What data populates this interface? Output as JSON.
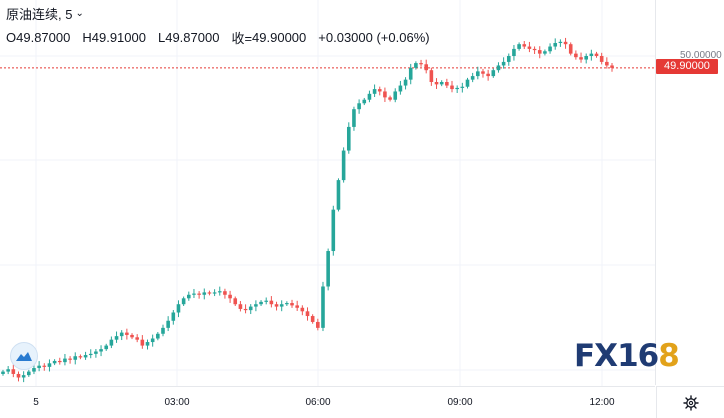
{
  "header": {
    "symbol_title": "原油连续, 5",
    "ohlc": {
      "o_label": "O",
      "o_value": "49.87000",
      "h_label": "H",
      "h_value": "49.91000",
      "l_label": "L",
      "l_value": "49.87000",
      "c_label": "收=",
      "c_value": "49.90000",
      "change": "+0.03000 (+0.06%)"
    }
  },
  "price_axis": {
    "tick_label": "50.00000",
    "last_price_tag": "49.90000"
  },
  "time_axis": {
    "labels": [
      "5",
      "03:00",
      "06:00",
      "09:00",
      "12:00"
    ]
  },
  "watermark": {
    "text_main": "FX16",
    "text_accent": "8"
  },
  "colors": {
    "up": "#26a69a",
    "down": "#ef5350",
    "price_line": "#e53935",
    "grid": "#f0f3fa"
  },
  "icons": {
    "settings": "gear-icon",
    "chart_logo": "cloud-icon",
    "dropdown": "chevron-down-icon"
  },
  "chart_data": {
    "type": "candlestick",
    "interval": "5",
    "y_tick": 50.0,
    "last_price": 49.9,
    "x_ticks": [
      "5",
      "03:00",
      "06:00",
      "09:00",
      "12:00"
    ],
    "close_path": [
      47.33,
      47.35,
      47.31,
      47.28,
      47.3,
      47.33,
      47.36,
      47.38,
      47.37,
      47.4,
      47.42,
      47.41,
      47.44,
      47.43,
      47.46,
      47.45,
      47.47,
      47.48,
      47.5,
      47.52,
      47.55,
      47.6,
      47.63,
      47.66,
      47.64,
      47.62,
      47.6,
      47.55,
      47.58,
      47.61,
      47.65,
      47.7,
      47.76,
      47.83,
      47.9,
      47.95,
      47.98,
      47.99,
      47.98,
      48.0,
      47.99,
      48.0,
      48.01,
      47.98,
      47.95,
      47.9,
      47.86,
      47.85,
      47.88,
      47.9,
      47.92,
      47.93,
      47.9,
      47.88,
      47.9,
      47.91,
      47.89,
      47.87,
      47.84,
      47.8,
      47.75,
      47.7,
      48.05,
      48.35,
      48.7,
      48.95,
      49.2,
      49.4,
      49.55,
      49.6,
      49.63,
      49.68,
      49.72,
      49.7,
      49.65,
      49.63,
      49.7,
      49.75,
      49.8,
      49.9,
      49.94,
      49.93,
      49.88,
      49.78,
      49.76,
      49.78,
      49.75,
      49.72,
      49.73,
      49.74,
      49.8,
      49.83,
      49.87,
      49.85,
      49.83,
      49.88,
      49.92,
      49.95,
      50.0,
      50.06,
      50.1,
      50.08,
      50.06,
      50.05,
      50.02,
      50.04,
      50.08,
      50.11,
      50.12,
      50.1,
      50.02,
      49.99,
      49.97,
      50.0,
      50.02,
      50.0,
      49.95,
      49.92,
      49.9
    ]
  }
}
